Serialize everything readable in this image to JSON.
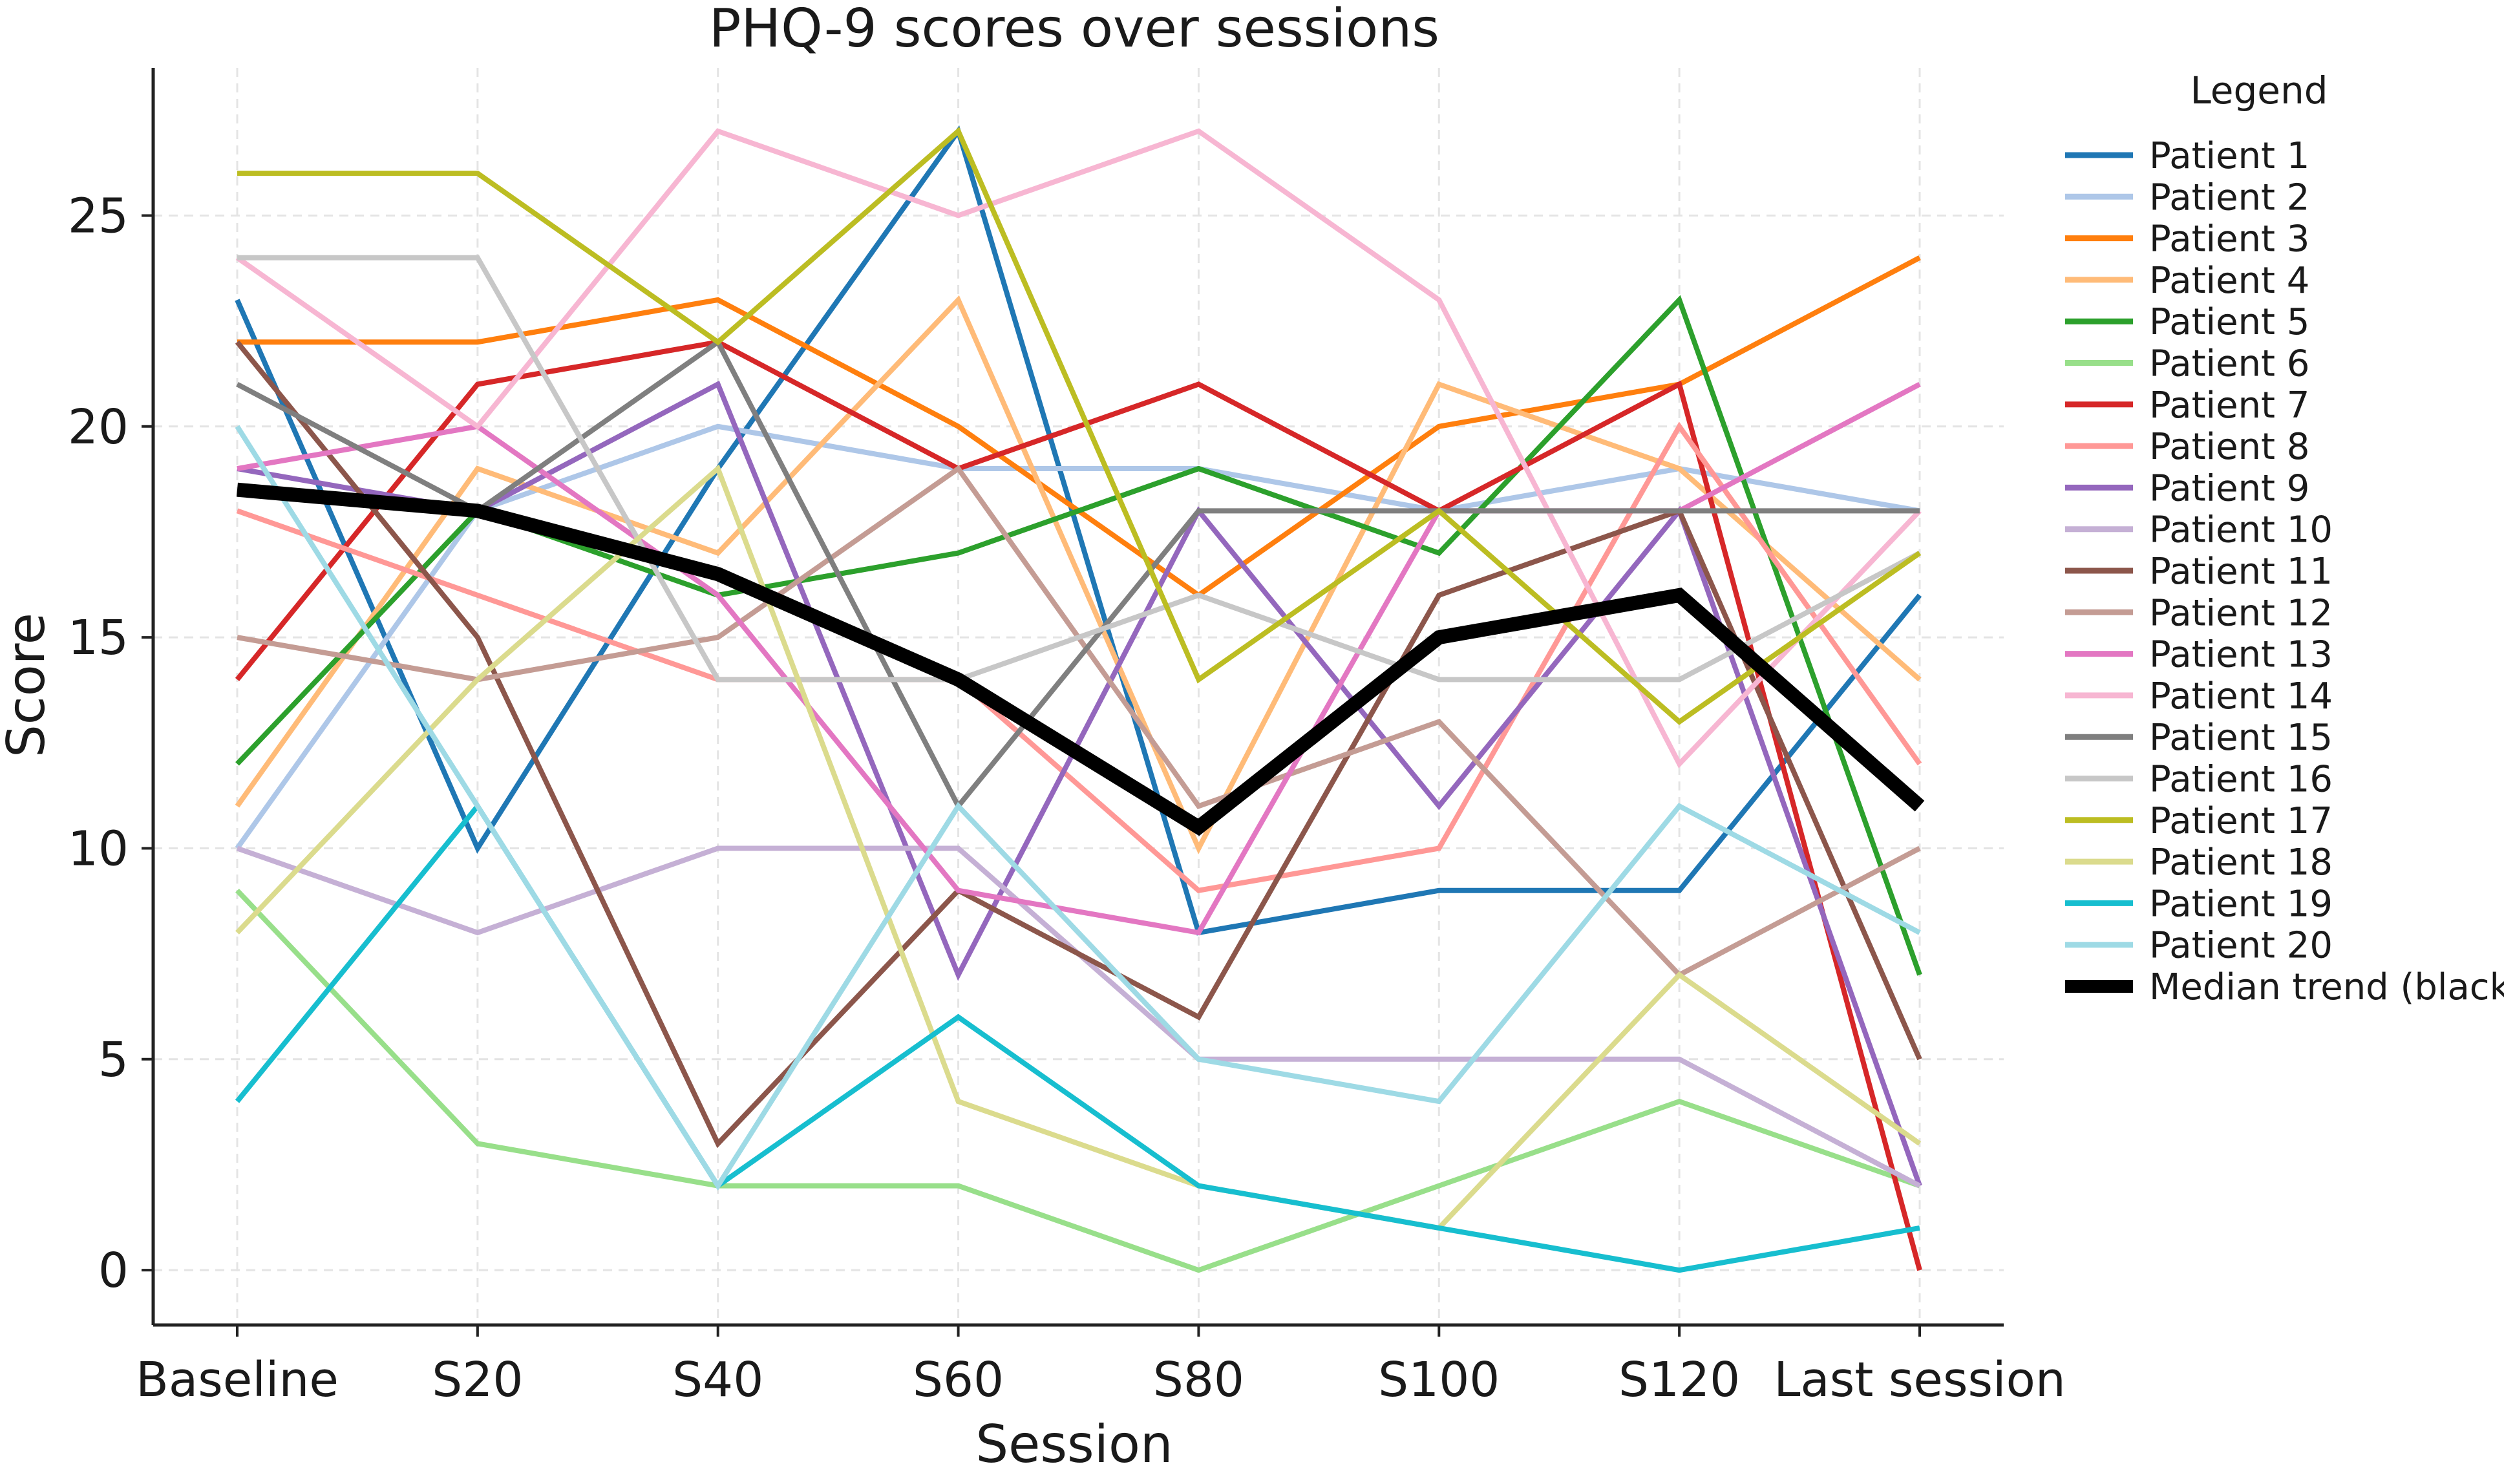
{
  "chart_data": {
    "type": "line",
    "title": "PHQ-9 scores over sessions",
    "xlabel": "Session",
    "ylabel": "Score",
    "ylim": [
      -1.3,
      28.5
    ],
    "yticks": [
      0,
      5,
      10,
      15,
      20,
      25
    ],
    "grid": true,
    "legend_title": "Legend",
    "legend_position": "right",
    "categories": [
      "Baseline",
      "S20",
      "S40",
      "S60",
      "S80",
      "S100",
      "S120",
      "Last session"
    ],
    "series": [
      {
        "name": "Patient 1",
        "color": "#1f77b4",
        "values": [
          23,
          10,
          19,
          27,
          8,
          9,
          9,
          16
        ]
      },
      {
        "name": "Patient 2",
        "color": "#aec7e8",
        "values": [
          10,
          18,
          20,
          19,
          19,
          18,
          19,
          18
        ]
      },
      {
        "name": "Patient 3",
        "color": "#ff7f0e",
        "values": [
          22,
          22,
          23,
          20,
          16,
          20,
          21,
          24
        ]
      },
      {
        "name": "Patient 4",
        "color": "#ffbb78",
        "values": [
          11,
          19,
          17,
          23,
          10,
          21,
          19,
          14
        ]
      },
      {
        "name": "Patient 5",
        "color": "#2ca02c",
        "values": [
          12,
          18,
          16,
          17,
          19,
          17,
          23,
          7
        ]
      },
      {
        "name": "Patient 6",
        "color": "#98df8a",
        "values": [
          9,
          3,
          2,
          2,
          0,
          2,
          4,
          2
        ]
      },
      {
        "name": "Patient 7",
        "color": "#d62728",
        "values": [
          14,
          21,
          22,
          19,
          21,
          18,
          21,
          0
        ]
      },
      {
        "name": "Patient 8",
        "color": "#ff9896",
        "values": [
          18,
          16,
          14,
          14,
          9,
          10,
          20,
          12
        ]
      },
      {
        "name": "Patient 9",
        "color": "#9467bd",
        "values": [
          19,
          18,
          21,
          7,
          18,
          11,
          18,
          2
        ]
      },
      {
        "name": "Patient 10",
        "color": "#c5b0d5",
        "values": [
          10,
          8,
          10,
          10,
          5,
          5,
          5,
          2
        ]
      },
      {
        "name": "Patient 11",
        "color": "#8c564b",
        "values": [
          22,
          15,
          3,
          9,
          6,
          16,
          18,
          5
        ]
      },
      {
        "name": "Patient 12",
        "color": "#c49c94",
        "values": [
          15,
          14,
          15,
          19,
          11,
          13,
          7,
          10
        ]
      },
      {
        "name": "Patient 13",
        "color": "#e377c2",
        "values": [
          19,
          20,
          16,
          9,
          8,
          18,
          18,
          21
        ]
      },
      {
        "name": "Patient 14",
        "color": "#f7b6d2",
        "values": [
          24,
          20,
          27,
          25,
          27,
          23,
          12,
          18
        ]
      },
      {
        "name": "Patient 15",
        "color": "#7f7f7f",
        "values": [
          21,
          18,
          22,
          11,
          18,
          18,
          18,
          18
        ]
      },
      {
        "name": "Patient 16",
        "color": "#c7c7c7",
        "values": [
          24,
          24,
          14,
          14,
          16,
          14,
          14,
          17
        ]
      },
      {
        "name": "Patient 17",
        "color": "#bcbd22",
        "values": [
          26,
          26,
          22,
          27,
          14,
          18,
          13,
          17
        ]
      },
      {
        "name": "Patient 18",
        "color": "#dbdb8d",
        "values": [
          8,
          14,
          19,
          4,
          2,
          1,
          7,
          3
        ]
      },
      {
        "name": "Patient 19",
        "color": "#17becf",
        "values": [
          4,
          11,
          2,
          6,
          2,
          1,
          0,
          1
        ]
      },
      {
        "name": "Patient 20",
        "color": "#9edae5",
        "values": [
          20,
          11,
          2,
          11,
          5,
          4,
          11,
          8
        ]
      },
      {
        "name": "Median trend (black)",
        "color": "#000000",
        "values": [
          18.5,
          18,
          16.5,
          14,
          10.5,
          15,
          16,
          11
        ],
        "bold": true
      }
    ]
  }
}
